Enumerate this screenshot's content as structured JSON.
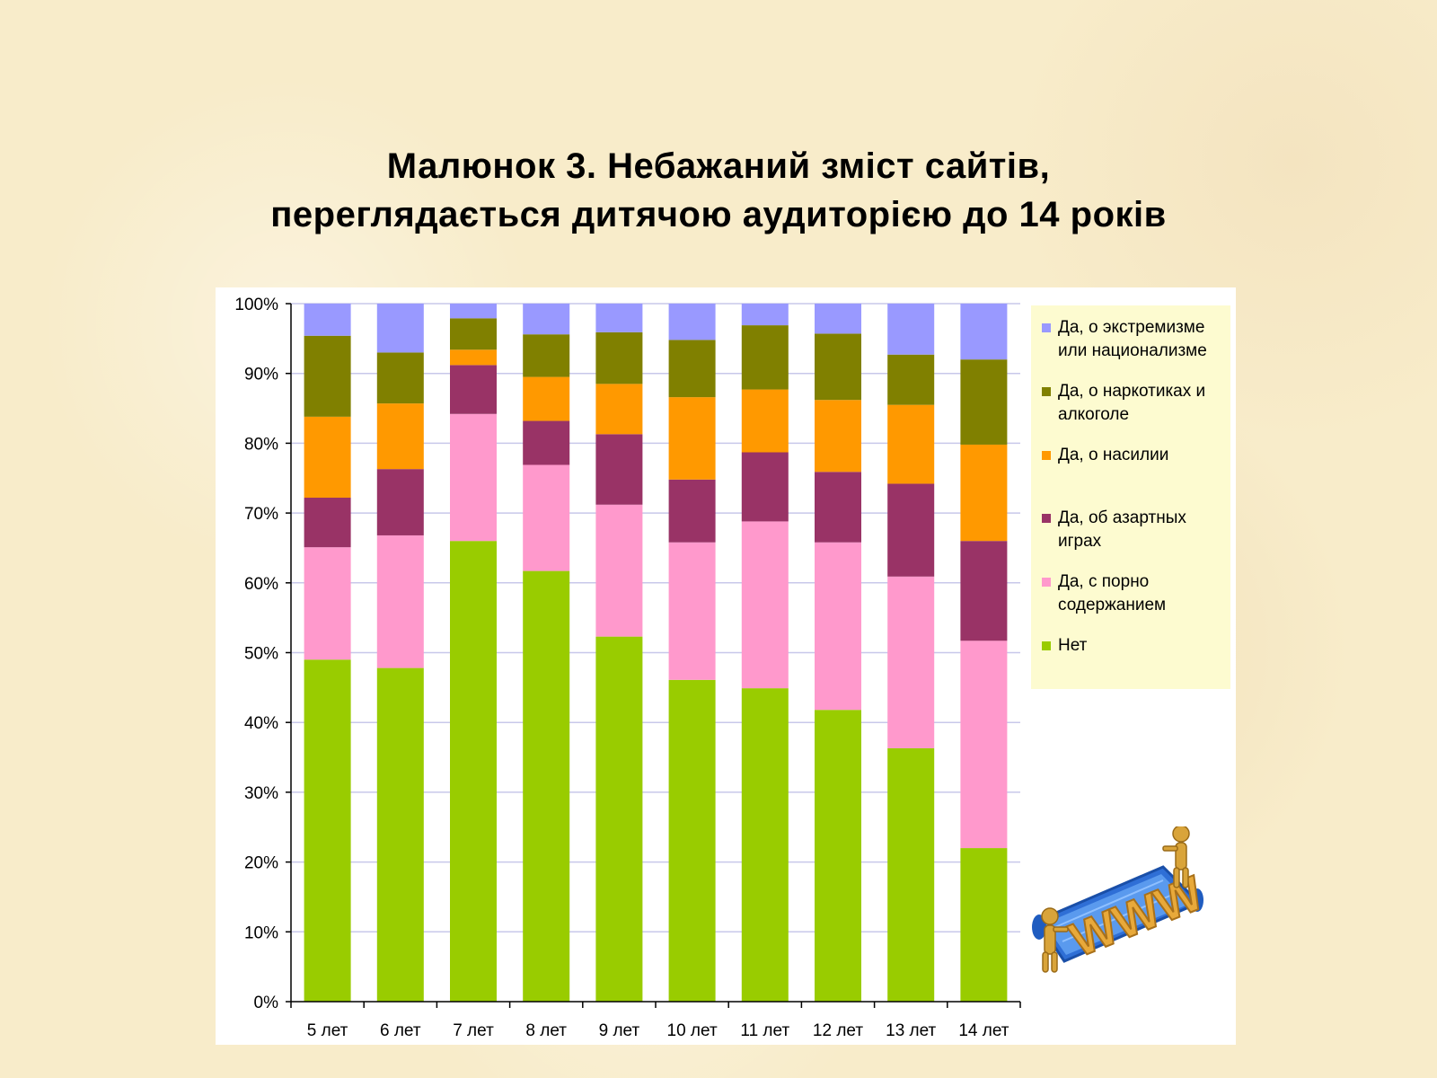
{
  "title": {
    "line1": "Малюнок 3. Небажаний зміст сайтів,",
    "line2": "переглядається дитячою аудиторією до 14 років"
  },
  "colors": {
    "background": "#f8ecca",
    "panel": "#ffffff",
    "legend_bg": "#fdfbd0",
    "gridline": "#c8c8ea"
  },
  "chart_data": {
    "type": "bar",
    "stacked": true,
    "categories": [
      "5 лет",
      "6 лет",
      "7 лет",
      "8 лет",
      "9 лет",
      "10 лет",
      "11 лет",
      "12 лет",
      "13 лет",
      "14 лет"
    ],
    "ylim": [
      0,
      100
    ],
    "yticks": [
      "0%",
      "10%",
      "20%",
      "30%",
      "40%",
      "50%",
      "60%",
      "70%",
      "80%",
      "90%",
      "100%"
    ],
    "grid": true,
    "legend_position": "right",
    "series": [
      {
        "name": "Нет",
        "color": "#99cc00",
        "values": [
          49,
          47.8,
          66,
          61.7,
          52.3,
          46.1,
          44.9,
          41.8,
          36.3,
          22
        ]
      },
      {
        "name": "Да, с порно содержанием",
        "color": "#ff99cc",
        "values": [
          16.1,
          19,
          18.2,
          15.2,
          18.9,
          19.7,
          23.9,
          24,
          24.6,
          29.7
        ]
      },
      {
        "name": "Да, об азартных играх",
        "color": "#993366",
        "values": [
          7.1,
          9.5,
          7,
          6.3,
          10.1,
          9,
          9.9,
          10.1,
          13.3,
          14.3
        ]
      },
      {
        "name": "Да, о насилии",
        "color": "#ff9900",
        "values": [
          11.6,
          9.4,
          2.2,
          6.3,
          7.2,
          11.8,
          9,
          10.3,
          11.3,
          13.8
        ]
      },
      {
        "name": "Да, о наркотиках и алкоголе",
        "color": "#808000",
        "values": [
          11.6,
          7.3,
          4.5,
          6.1,
          7.4,
          8.2,
          9.2,
          9.5,
          7.2,
          12.2
        ]
      },
      {
        "name": "Да, о экстремизме или национализме",
        "color": "#9999ff",
        "values": [
          4.6,
          7,
          2.1,
          4.4,
          4.1,
          5.2,
          3.1,
          4.3,
          7.3,
          8
        ]
      }
    ]
  },
  "legend": {
    "items": [
      {
        "lines": [
          "Да, о экстремизме",
          "или национализме"
        ],
        "color": "#9999ff"
      },
      {
        "lines": [
          "Да, о наркотиках и",
          "алкоголе"
        ],
        "color": "#808000"
      },
      {
        "lines": [
          "Да, о насилии"
        ],
        "color": "#ff9900"
      },
      {
        "lines": [
          "Да, об азартных",
          "играх"
        ],
        "color": "#993366"
      },
      {
        "lines": [
          "Да, с порно",
          "содержанием"
        ],
        "color": "#ff99cc"
      },
      {
        "lines": [
          "Нет"
        ],
        "color": "#99cc00"
      }
    ]
  },
  "clipart": {
    "label": "WWW",
    "icon": "www-figures-icon"
  }
}
